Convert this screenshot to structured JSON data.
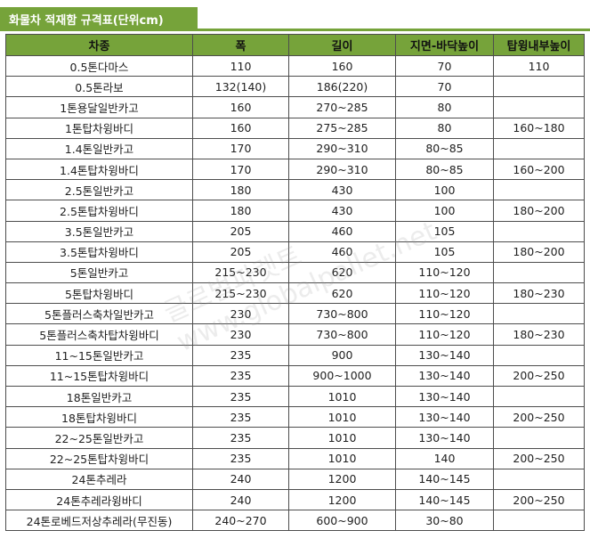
{
  "title": "화물차 적재함 규격표(단위cm)",
  "colors": {
    "header_green": "#76a33a"
  },
  "table": {
    "headers": [
      "차종",
      "폭",
      "길이",
      "지면-바닥높이",
      "탑윙내부높이"
    ],
    "rows": [
      [
        "0.5톤다마스",
        "110",
        "160",
        "70",
        "110"
      ],
      [
        "0.5톤라보",
        "132(140)",
        "186(220)",
        "70",
        ""
      ],
      [
        "1톤용달일반카고",
        "160",
        "270~285",
        "80",
        ""
      ],
      [
        "1톤탑차윙바디",
        "160",
        "275~285",
        "80",
        "160~180"
      ],
      [
        "1.4톤일반카고",
        "170",
        "290~310",
        "80~85",
        ""
      ],
      [
        "1.4톤탑차윙바디",
        "170",
        "290~310",
        "80~85",
        "160~200"
      ],
      [
        "2.5톤일반카고",
        "180",
        "430",
        "100",
        ""
      ],
      [
        "2.5톤탑차윙바디",
        "180",
        "430",
        "100",
        "180~200"
      ],
      [
        "3.5톤일반카고",
        "205",
        "460",
        "105",
        ""
      ],
      [
        "3.5톤탑차윙바디",
        "205",
        "460",
        "105",
        "180~200"
      ],
      [
        "5톤일반카고",
        "215~230",
        "620",
        "110~120",
        ""
      ],
      [
        "5톤탑차윙바디",
        "215~230",
        "620",
        "110~120",
        "180~230"
      ],
      [
        "5톤플러스축차일반카고",
        "230",
        "730~800",
        "110~120",
        ""
      ],
      [
        "5톤플러스축차탑차윙바디",
        "230",
        "730~800",
        "110~120",
        "180~230"
      ],
      [
        "11~15톤일반카고",
        "235",
        "900",
        "130~140",
        ""
      ],
      [
        "11~15톤탑차윙바디",
        "235",
        "900~1000",
        "130~140",
        "200~250"
      ],
      [
        "18톤일반카고",
        "235",
        "1010",
        "130~140",
        ""
      ],
      [
        "18톤탑차윙바디",
        "235",
        "1010",
        "130~140",
        "200~250"
      ],
      [
        "22~25톤일반카고",
        "235",
        "1010",
        "130~140",
        ""
      ],
      [
        "22~25톤탑차윙바디",
        "235",
        "1010",
        "140",
        "200~250"
      ],
      [
        "24톤추레라",
        "240",
        "1200",
        "140~145",
        ""
      ],
      [
        "24톤추레라윙바디",
        "240",
        "1200",
        "140~145",
        "200~250"
      ],
      [
        "24톤로베드저상추레라(무진동)",
        "240~270",
        "600~900",
        "30~80",
        ""
      ]
    ]
  },
  "watermark": {
    "line1": "글로벌파렛트",
    "line2": "www.globalpallet.net"
  }
}
